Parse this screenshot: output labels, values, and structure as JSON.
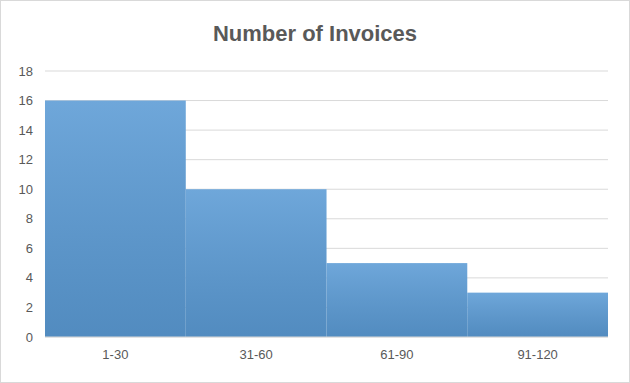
{
  "chart_data": {
    "type": "bar",
    "title": "Number of Invoices",
    "categories": [
      "1-30",
      "31-60",
      "61-90",
      "91-120"
    ],
    "values": [
      16,
      10,
      5,
      3
    ],
    "color": "#5b9bd5",
    "ylim": [
      0,
      18
    ],
    "yticks": [
      0,
      2,
      4,
      6,
      8,
      10,
      12,
      14,
      16,
      18
    ],
    "grid": true
  }
}
